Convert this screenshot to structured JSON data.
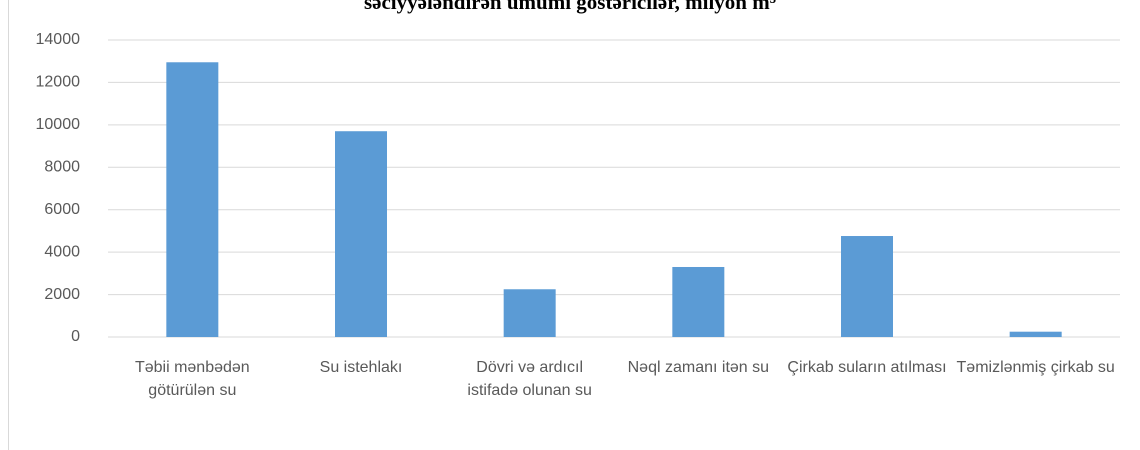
{
  "chart_data": {
    "type": "bar",
    "title": "səciyyələndirən ümumi göstəricilər, milyon m³",
    "categories": [
      "Təbii mənbədən götürülən su",
      "Su istehlakı",
      "Dövri və ardıcıl istifadə olunan su",
      "Nəql zamanı itən su",
      "Çirkab suların atılması",
      "Təmizlənmiş çirkab su"
    ],
    "values": [
      12950,
      9700,
      2250,
      3300,
      4760,
      250
    ],
    "color": "#5b9bd5",
    "ylim": [
      0,
      14000
    ],
    "yticks": [
      0,
      2000,
      4000,
      6000,
      8000,
      10000,
      12000,
      14000
    ],
    "grid": true
  }
}
